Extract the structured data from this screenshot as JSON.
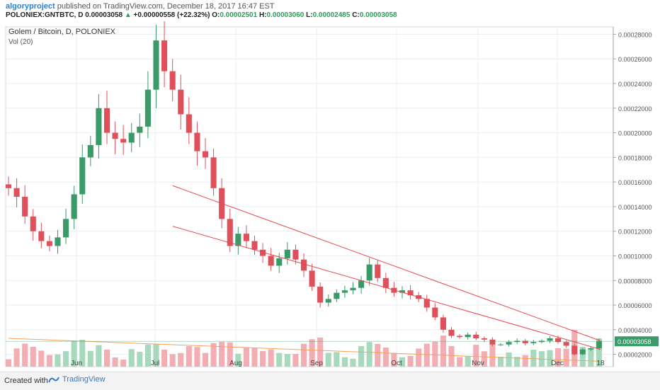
{
  "header": {
    "author": "algoryproject",
    "published": "published on TradingView.com, December 18, 2017 16:47 EST",
    "symbol": "POLONIEX:GNTBTC, D",
    "last": "0.00003058",
    "change_arrow": "▲",
    "change": "+0.00000558 (+22.32%)",
    "o_label": "O:",
    "o": "0.00002501",
    "h_label": "H:",
    "h": "0.00003060",
    "l_label": "L:",
    "l": "0.00002485",
    "c_label": "C:",
    "c": "0.00003058"
  },
  "pane": {
    "title": "Golem / Bitcoin, D, POLONIEX",
    "vol_label": "Vol (20)"
  },
  "footer": {
    "created_with": "Created with",
    "brand": "TradingView"
  },
  "colors": {
    "up": "#3a9a68",
    "up_vol": "#a7d9bd",
    "down": "#e0505a",
    "down_vol": "#f3aeb3",
    "trendline": "#e8484f",
    "vol_ma": "#f3a35a",
    "price_label_bg": "#3a9a68",
    "grid": "#e9edf3"
  },
  "chart_data": {
    "type": "candlestick",
    "title": "Golem / Bitcoin, D, POLONIEX",
    "x_labels": [
      "Jun",
      "Jul",
      "Aug",
      "Sep",
      "Oct",
      "Nov",
      "Dec",
      "18"
    ],
    "y_ticks": [
      "0.00002000",
      "0.00004000",
      "0.00006000",
      "0.00008000",
      "0.00010000",
      "0.00012000",
      "0.00014000",
      "0.00016000",
      "0.00018000",
      "0.00020000",
      "0.00022000",
      "0.00024000",
      "0.00026000",
      "0.00028000"
    ],
    "current_price_label": "0.00003058",
    "price_series_close": [
      0.000155,
      0.000148,
      0.000132,
      0.00012,
      0.000112,
      0.000108,
      0.000115,
      0.00013,
      0.00015,
      0.00018,
      0.00019,
      0.00022,
      0.0002,
      0.000195,
      0.000192,
      0.0002,
      0.000205,
      0.000235,
      0.000275,
      0.00025,
      0.000235,
      0.000215,
      0.0002,
      0.000185,
      0.00018,
      0.000155,
      0.00013,
      0.000108,
      0.000118,
      0.000112,
      0.000105,
      0.0001,
      9.2e-05,
      9.8e-05,
      0.000105,
      9.7e-05,
      8.8e-05,
      7.5e-05,
      6.2e-05,
      6.5e-05,
      7e-05,
      7.2e-05,
      7.4e-05,
      8e-05,
      9.3e-05,
      8.2e-05,
      7.4e-05,
      7e-05,
      7.2e-05,
      6.8e-05,
      6.5e-05,
      5.8e-05,
      5e-05,
      4e-05,
      3.5e-05,
      3.4e-05,
      3.6e-05,
      3.3e-05,
      3.2e-05,
      2.8e-05,
      2.8e-05,
      3e-05,
      3.1e-05,
      2.9e-05,
      3e-05,
      3.1e-05,
      3.3e-05,
      3e-05,
      2.7e-05,
      2e-05,
      2.4e-05,
      2.5e-05,
      3.058e-05
    ],
    "trendlines": [
      {
        "from_date": "Jul",
        "from_price": 0.000157,
        "to_date": "18",
        "to_price": 3.1e-05
      },
      {
        "from_date": "Jul",
        "from_price": 0.000124,
        "to_date": "18",
        "to_price": 2.4e-05
      }
    ]
  }
}
